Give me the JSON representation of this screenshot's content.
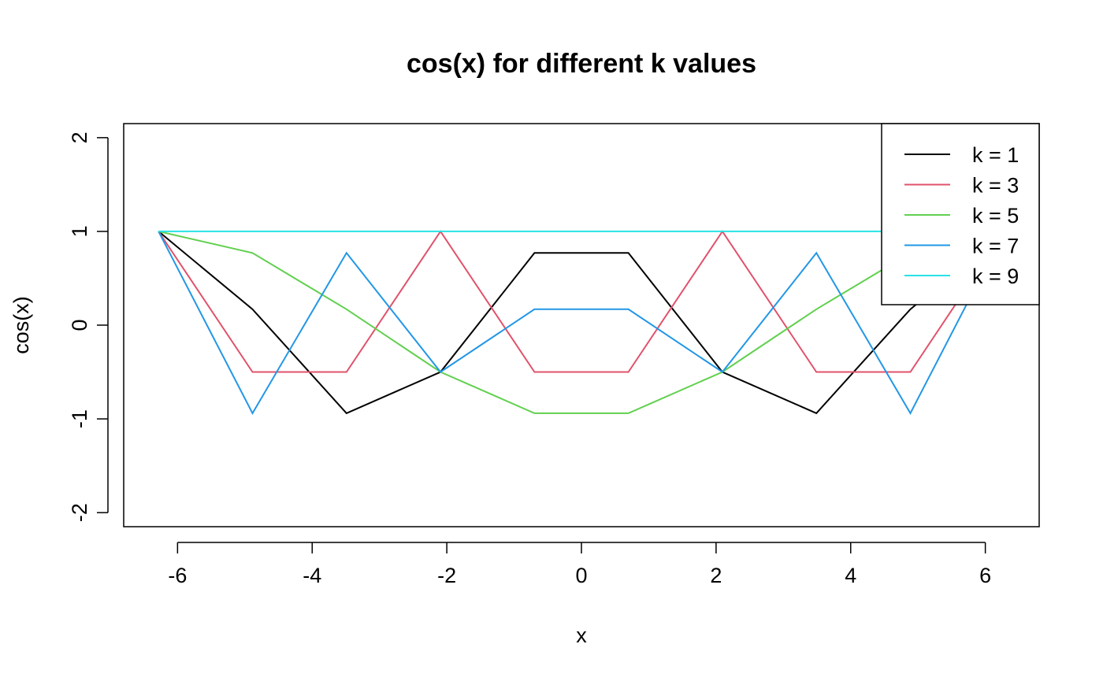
{
  "chart_data": {
    "type": "line",
    "title": "cos(x) for different k values",
    "xlabel": "x",
    "ylabel": "cos(x)",
    "xlim": [
      -6.8,
      6.8
    ],
    "ylim": [
      -2.15,
      2.15
    ],
    "xticks": [
      -6,
      -4,
      -2,
      0,
      2,
      4,
      6
    ],
    "xtick_labels": [
      "-6",
      "-4",
      "-2",
      "0",
      "2",
      "4",
      "6"
    ],
    "yticks": [
      -2,
      -1,
      0,
      1,
      2
    ],
    "ytick_labels": [
      "-2",
      "-1",
      "0",
      "1",
      "2"
    ],
    "grid": false,
    "legend_position": "top-right",
    "x": [
      -6.2832,
      -4.8869,
      -3.4907,
      -2.0944,
      -0.6981,
      0.6981,
      2.0944,
      3.4907,
      4.8869,
      6.2832
    ],
    "series": [
      {
        "name": "k = 1",
        "color": "#000000",
        "values": [
          1,
          0.17,
          -0.94,
          -0.5,
          0.77,
          0.77,
          -0.5,
          -0.94,
          0.17,
          1
        ]
      },
      {
        "name": "k = 3",
        "color": "#DF536B",
        "values": [
          1,
          -0.5,
          -0.5,
          1,
          -0.5,
          -0.5,
          1,
          -0.5,
          -0.5,
          1
        ]
      },
      {
        "name": "k = 5",
        "color": "#61D04F",
        "values": [
          1,
          0.77,
          0.17,
          -0.5,
          -0.94,
          -0.94,
          -0.5,
          0.17,
          0.77,
          1
        ]
      },
      {
        "name": "k = 7",
        "color": "#2297E6",
        "values": [
          1,
          -0.94,
          0.77,
          -0.5,
          0.17,
          0.17,
          -0.5,
          0.77,
          -0.94,
          1
        ]
      },
      {
        "name": "k = 9",
        "color": "#28E2E5",
        "values": [
          1,
          1,
          1,
          1,
          1,
          1,
          1,
          1,
          1,
          1
        ]
      }
    ]
  }
}
